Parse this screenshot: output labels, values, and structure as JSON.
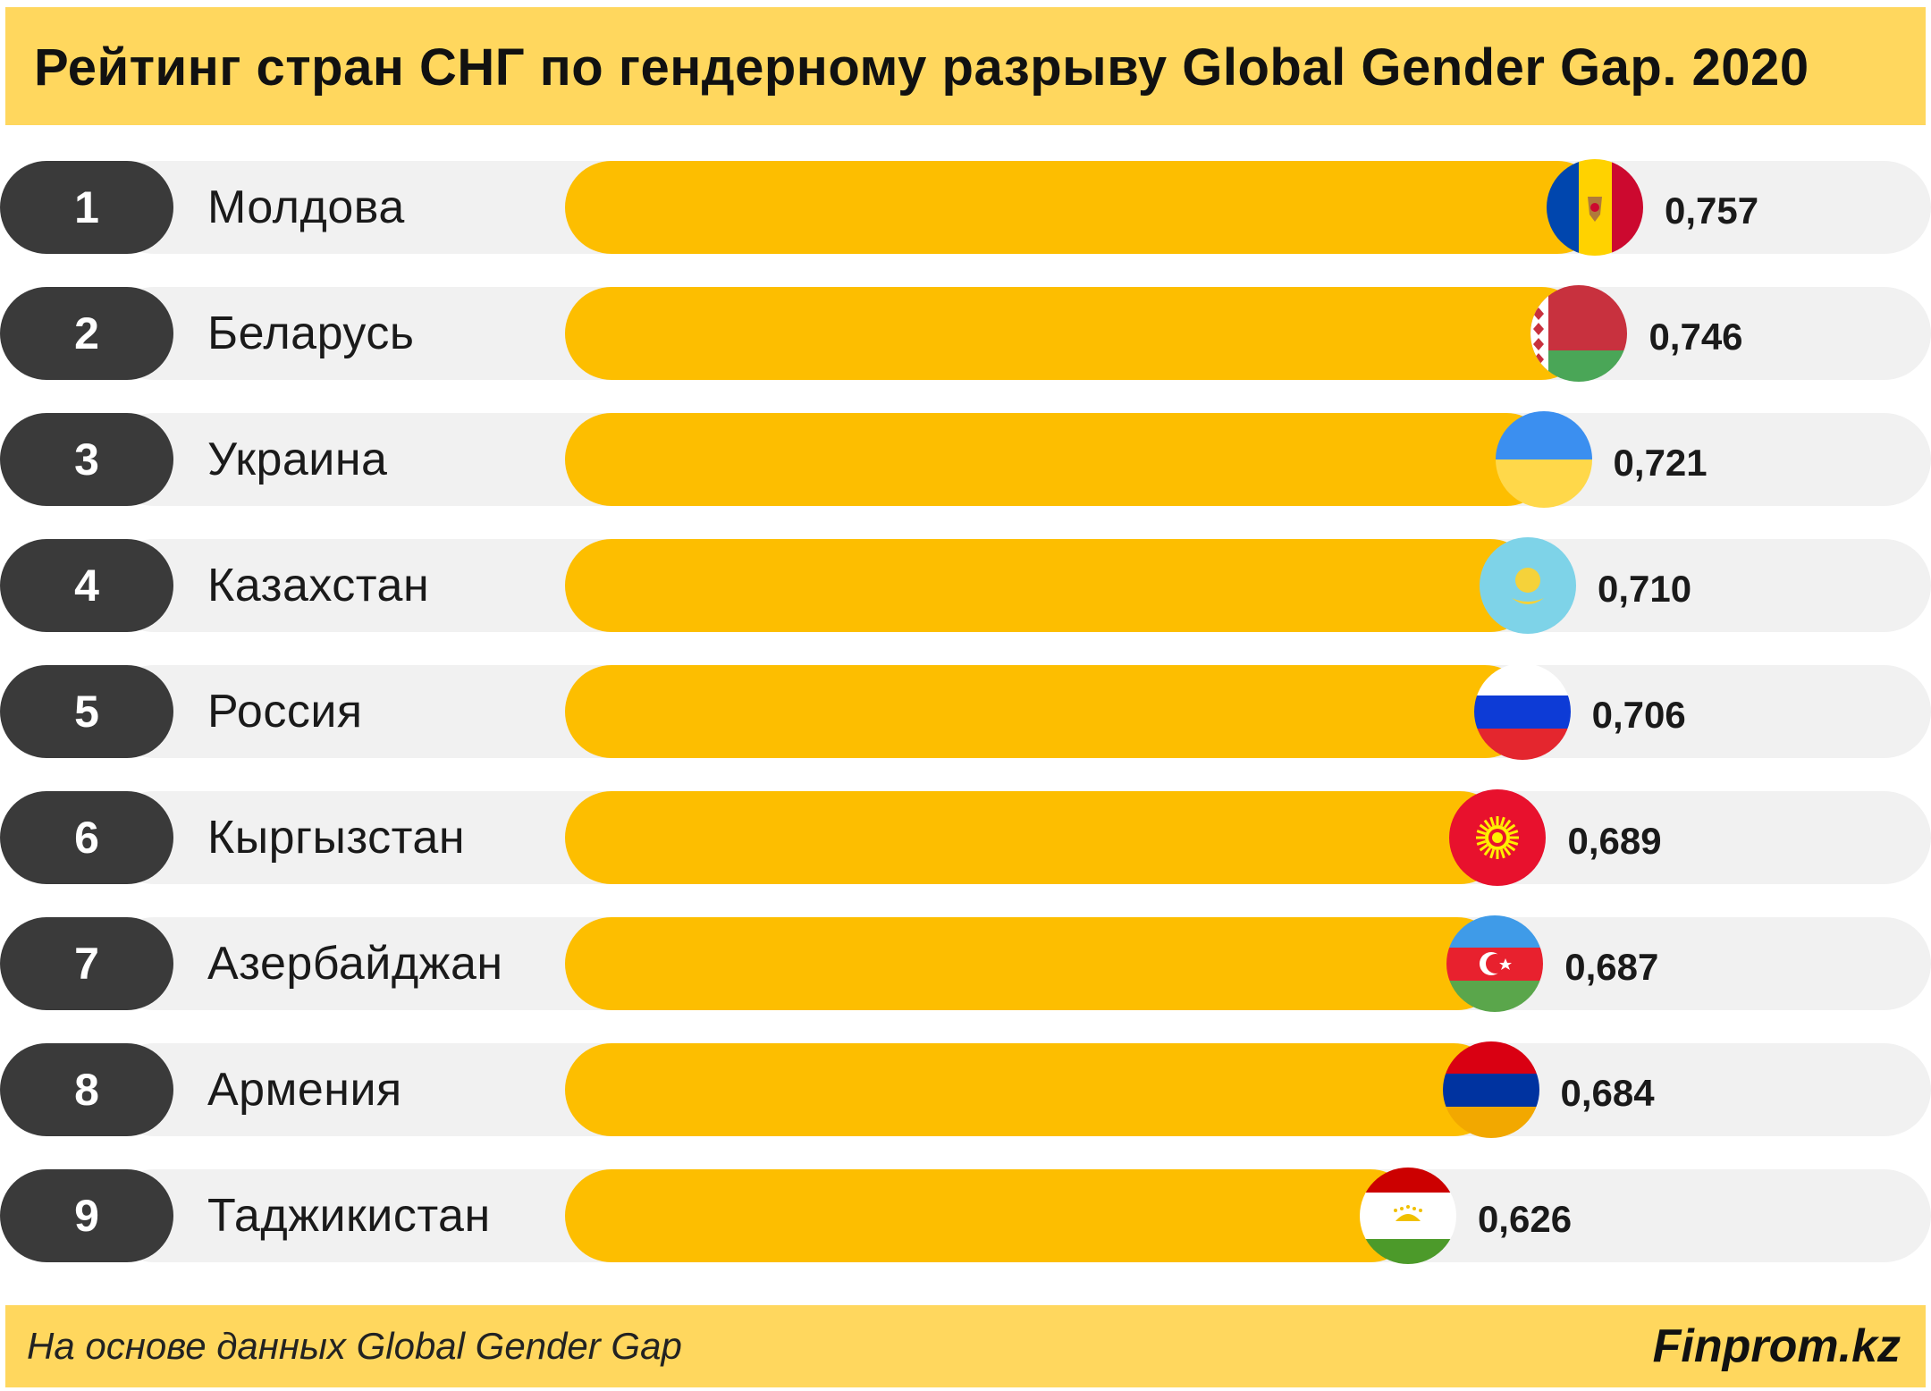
{
  "header": {
    "title": "Рейтинг стран СНГ по гендерному разрыву Global Gender Gap. 2020"
  },
  "footer": {
    "source": "На основе данных Global Gender Gap",
    "brand": "Finprom.kz"
  },
  "colors": {
    "bar": "#fdbe00",
    "banner": "#ffd75e",
    "rank_pill": "#3a3a3a",
    "track": "#f1f1f1"
  },
  "chart_data": {
    "type": "bar",
    "orientation": "horizontal",
    "title": "Рейтинг стран СНГ по гендерному разрыву Global Gender Gap. 2020",
    "xlim": [
      0,
      0.757
    ],
    "rows": [
      {
        "rank": "1",
        "country": "Молдова",
        "value": 0.757,
        "label": "0,757",
        "flag": "moldova-flag-icon"
      },
      {
        "rank": "2",
        "country": "Беларусь",
        "value": 0.746,
        "label": "0,746",
        "flag": "belarus-flag-icon"
      },
      {
        "rank": "3",
        "country": "Украина",
        "value": 0.721,
        "label": "0,721",
        "flag": "ukraine-flag-icon"
      },
      {
        "rank": "4",
        "country": "Казахстан",
        "value": 0.71,
        "label": "0,710",
        "flag": "kazakhstan-flag-icon"
      },
      {
        "rank": "5",
        "country": "Россия",
        "value": 0.706,
        "label": "0,706",
        "flag": "russia-flag-icon"
      },
      {
        "rank": "6",
        "country": "Кыргызстан",
        "value": 0.689,
        "label": "0,689",
        "flag": "kyrgyzstan-flag-icon"
      },
      {
        "rank": "7",
        "country": "Азербайджан",
        "value": 0.687,
        "label": "0,687",
        "flag": "azerbaijan-flag-icon"
      },
      {
        "rank": "8",
        "country": "Армения",
        "value": 0.684,
        "label": "0,684",
        "flag": "armenia-flag-icon"
      },
      {
        "rank": "9",
        "country": "Таджикистан",
        "value": 0.626,
        "label": "0,626",
        "flag": "tajikistan-flag-icon"
      }
    ]
  }
}
